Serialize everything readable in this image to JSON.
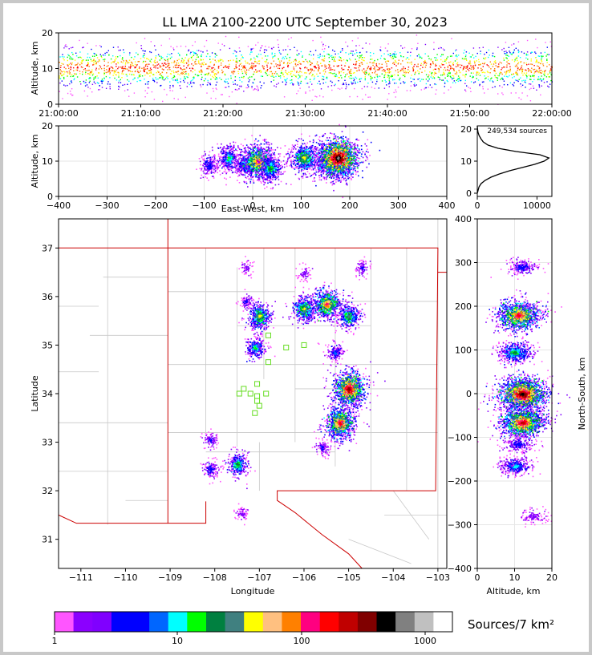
{
  "chart_data": {
    "type": "scatter",
    "title": "LL LMA 2100-2200 UTC September 30, 2023",
    "panels": {
      "time_height": {
        "ylabel": "Altitude, km",
        "ylim": [
          0,
          20
        ],
        "yticks": [
          "0",
          "10",
          "20"
        ],
        "xticks": [
          "21:00:00",
          "21:10:00",
          "21:20:00",
          "21:30:00",
          "21:40:00",
          "21:50:00",
          "22:00:00"
        ]
      },
      "ew_height": {
        "ylabel": "Altitude, km",
        "xlabel": "East-West, km",
        "xlim": [
          -400,
          400
        ],
        "ylim": [
          0,
          20
        ],
        "xticks": [
          "−400",
          "−300",
          "−200",
          "−100",
          "0",
          "100",
          "200",
          "300",
          "400"
        ],
        "yticks": [
          "0",
          "10",
          "20"
        ],
        "clusters": [
          {
            "x": -90,
            "alt": 9,
            "level": 4
          },
          {
            "x": -50,
            "alt": 11,
            "level": 7
          },
          {
            "x": -20,
            "alt": 9,
            "level": 5
          },
          {
            "x": 10,
            "alt": 10,
            "level": 13
          },
          {
            "x": 35,
            "alt": 8,
            "level": 8
          },
          {
            "x": 105,
            "alt": 11,
            "level": 10
          },
          {
            "x": 165,
            "alt": 10,
            "level": 12
          },
          {
            "x": 175,
            "alt": 11,
            "level": 18
          }
        ]
      },
      "alt_histogram": {
        "annotation": "249,534 sources",
        "xticks": [
          "0",
          "10000"
        ],
        "yticks": [
          "0",
          "10",
          "20"
        ],
        "xlim": [
          0,
          12500
        ],
        "ylim": [
          -1,
          21
        ],
        "profile": [
          [
            0,
            0
          ],
          [
            0.5,
            80
          ],
          [
            1,
            150
          ],
          [
            2,
            300
          ],
          [
            3,
            650
          ],
          [
            4,
            1300
          ],
          [
            5,
            2300
          ],
          [
            6,
            3700
          ],
          [
            7,
            5400
          ],
          [
            8,
            7500
          ],
          [
            9,
            9600
          ],
          [
            10,
            11200
          ],
          [
            11,
            12000
          ],
          [
            12,
            10500
          ],
          [
            13,
            6500
          ],
          [
            14,
            3500
          ],
          [
            15,
            1800
          ],
          [
            16,
            1000
          ],
          [
            17,
            600
          ],
          [
            18,
            300
          ],
          [
            19,
            120
          ],
          [
            20,
            40
          ],
          [
            21,
            0
          ]
        ]
      },
      "plan_view": {
        "xlabel": "Longitude",
        "ylabel": "Latitude",
        "xlim": [
          -111.5,
          -102.8
        ],
        "ylim": [
          30.4,
          37.6
        ],
        "xticks": [
          "−111",
          "−110",
          "−109",
          "−108",
          "−107",
          "−106",
          "−105",
          "−104",
          "−103"
        ],
        "yticks": [
          "31",
          "32",
          "33",
          "34",
          "35",
          "36",
          "37"
        ],
        "clusters": [
          {
            "lon": -107.0,
            "lat": 35.6,
            "level": 10
          },
          {
            "lon": -107.1,
            "lat": 34.95,
            "level": 7
          },
          {
            "lon": -107.3,
            "lat": 35.9,
            "level": 3
          },
          {
            "lon": -106.0,
            "lat": 35.75,
            "level": 10
          },
          {
            "lon": -105.5,
            "lat": 35.85,
            "level": 13
          },
          {
            "lon": -105.0,
            "lat": 35.6,
            "level": 9
          },
          {
            "lon": -105.0,
            "lat": 34.1,
            "level": 16
          },
          {
            "lon": -105.2,
            "lat": 33.4,
            "level": 14
          },
          {
            "lon": -107.5,
            "lat": 32.55,
            "level": 8
          },
          {
            "lon": -108.1,
            "lat": 32.45,
            "level": 4
          },
          {
            "lon": -108.1,
            "lat": 33.05,
            "level": 3
          },
          {
            "lon": -104.7,
            "lat": 36.6,
            "level": 3
          },
          {
            "lon": -107.3,
            "lat": 36.6,
            "level": 2
          },
          {
            "lon": -106.0,
            "lat": 36.5,
            "level": 2
          },
          {
            "lon": -107.4,
            "lat": 31.55,
            "level": 2
          },
          {
            "lon": -105.6,
            "lat": 32.9,
            "level": 3
          },
          {
            "lon": -105.3,
            "lat": 34.85,
            "level": 5
          }
        ],
        "stations": [
          [
            -106.8,
            35.2
          ],
          [
            -106.4,
            34.95
          ],
          [
            -106.0,
            35.0
          ],
          [
            -106.8,
            34.65
          ],
          [
            -107.05,
            34.2
          ],
          [
            -107.35,
            34.1
          ],
          [
            -107.2,
            34.0
          ],
          [
            -107.45,
            34.0
          ],
          [
            -106.85,
            34.0
          ],
          [
            -107.05,
            33.95
          ],
          [
            -107.05,
            33.85
          ],
          [
            -107.0,
            33.75
          ],
          [
            -107.1,
            33.6
          ]
        ]
      },
      "ns_height": {
        "ylabel": "North-South, km",
        "xlabel": "Altitude, km",
        "xlim": [
          0,
          20
        ],
        "ylim": [
          -400,
          400
        ],
        "xticks": [
          "0",
          "10",
          "20"
        ],
        "yticks": [
          "400",
          "300",
          "200",
          "100",
          "0",
          "−100",
          "−200",
          "−300",
          "−400"
        ],
        "clusters": [
          {
            "y": 290,
            "alt": 12,
            "level": 4
          },
          {
            "y": 180,
            "alt": 11,
            "level": 14
          },
          {
            "y": 95,
            "alt": 10,
            "level": 8
          },
          {
            "y": 0,
            "alt": 12,
            "level": 17
          },
          {
            "y": -65,
            "alt": 12,
            "level": 15
          },
          {
            "y": -115,
            "alt": 11,
            "level": 4
          },
          {
            "y": -165,
            "alt": 10,
            "level": 6
          },
          {
            "y": -280,
            "alt": 15,
            "level": 2
          }
        ]
      }
    },
    "colorbar": {
      "label": "Sources/7 km²",
      "ticks": [
        "1",
        "10",
        "100",
        "1000"
      ],
      "colors": [
        "#ff55ff",
        "#8b00ff",
        "#8000ff",
        "#0000ff",
        "#0000ff",
        "#0066ff",
        "#00ffff",
        "#00ff00",
        "#008040",
        "#408080",
        "#ffff00",
        "#ffc080",
        "#ff8000",
        "#ff0080",
        "#ff0000",
        "#c00000",
        "#800000",
        "#000000",
        "#808080",
        "#c0c0c0",
        "#ffffff"
      ]
    }
  }
}
